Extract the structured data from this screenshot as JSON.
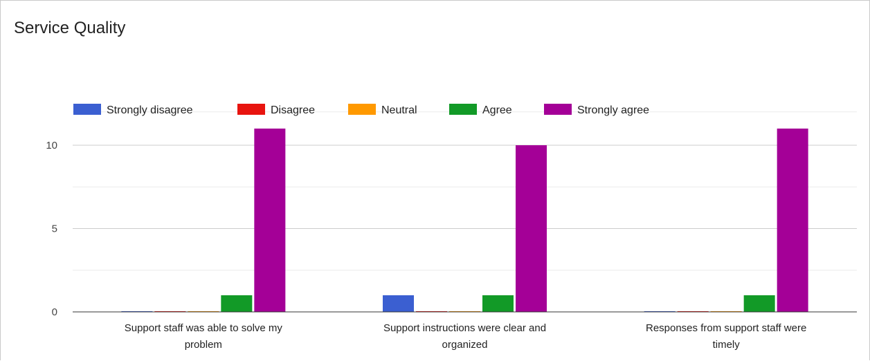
{
  "chart_data": {
    "type": "bar",
    "title": "Service Quality",
    "categories": [
      "Support staff was able to solve my problem",
      "Support instructions were clear and organized",
      "Responses from support staff were timely"
    ],
    "category_lines": [
      [
        "Support staff was able to solve my",
        "problem"
      ],
      [
        "Support instructions were clear and",
        "organized"
      ],
      [
        "Responses from support staff were",
        "timely"
      ]
    ],
    "series": [
      {
        "name": "Strongly disagree",
        "color": "#3b5fd1",
        "values": [
          0,
          1,
          0
        ]
      },
      {
        "name": "Disagree",
        "color": "#e8140f",
        "values": [
          0,
          0,
          0
        ]
      },
      {
        "name": "Neutral",
        "color": "#ff9900",
        "values": [
          0,
          0,
          0
        ]
      },
      {
        "name": "Agree",
        "color": "#129a27",
        "values": [
          1,
          1,
          1
        ]
      },
      {
        "name": "Strongly agree",
        "color": "#a40097",
        "values": [
          11,
          10,
          11
        ]
      }
    ],
    "yticks": [
      0,
      5,
      10
    ],
    "ylim": [
      0,
      12
    ],
    "grid": true,
    "legend_position": "top-left"
  }
}
